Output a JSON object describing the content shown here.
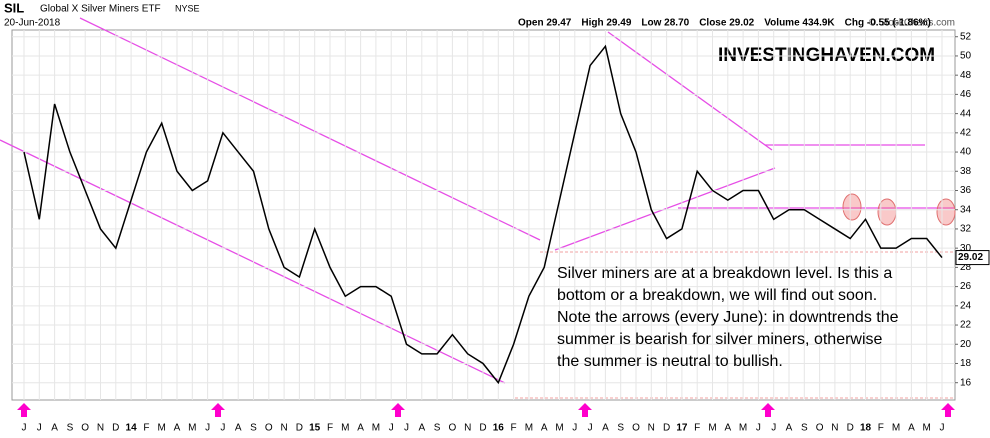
{
  "chart_data": {
    "type": "line",
    "symbol": "SIL",
    "title": "Global X Silver Miners ETF",
    "exchange": "NYSE",
    "date": "20-Jun-2018",
    "quote": [
      "Open 29.47",
      "High 29.49",
      "Low 28.70",
      "Close 29.02",
      "Volume 434.9K",
      "Chg -0.55 (-1.86%)"
    ],
    "credit": "© StockCharts.com",
    "watermark": "INVESTINGHAVEN.COM",
    "annotation": [
      "Silver miners are at a breakdown level. Is this a",
      "bottom or a breakdown, we will find out soon.",
      "Note the arrows (every June): in downtrends the",
      "summer is bearish for silver miners, otherwise",
      "the summer is neutral to bullish."
    ],
    "categories": [
      "J",
      "J",
      "A",
      "S",
      "O",
      "N",
      "D",
      "14",
      "F",
      "M",
      "A",
      "M",
      "J",
      "J",
      "A",
      "S",
      "O",
      "N",
      "D",
      "15",
      "F",
      "M",
      "A",
      "M",
      "J",
      "J",
      "A",
      "S",
      "O",
      "N",
      "D",
      "16",
      "F",
      "M",
      "A",
      "M",
      "J",
      "J",
      "A",
      "S",
      "O",
      "N",
      "D",
      "17",
      "F",
      "M",
      "A",
      "M",
      "J",
      "J",
      "A",
      "S",
      "O",
      "N",
      "D",
      "18",
      "F",
      "M",
      "A",
      "M",
      "J"
    ],
    "series": [
      {
        "name": "SIL",
        "color": "#000000",
        "values": [
          40,
          33,
          45,
          40,
          36,
          32,
          30,
          35,
          40,
          43,
          38,
          36,
          37,
          42,
          40,
          38,
          32,
          28,
          27,
          32,
          28,
          25,
          26,
          26,
          25,
          20,
          19,
          19,
          21,
          19,
          18,
          16,
          20,
          25,
          28,
          35,
          42,
          49,
          51,
          44,
          40,
          34,
          31,
          32,
          38,
          36,
          35,
          36,
          36,
          33,
          34,
          34,
          33,
          32,
          31,
          33,
          30,
          30,
          31,
          31,
          29.02
        ]
      }
    ],
    "ylim": [
      14.2,
      52.7
    ],
    "yticks": [
      16,
      18,
      20,
      22,
      24,
      26,
      28,
      30,
      32,
      34,
      36,
      38,
      40,
      42,
      44,
      46,
      48,
      50,
      52
    ],
    "grid": true
  }
}
